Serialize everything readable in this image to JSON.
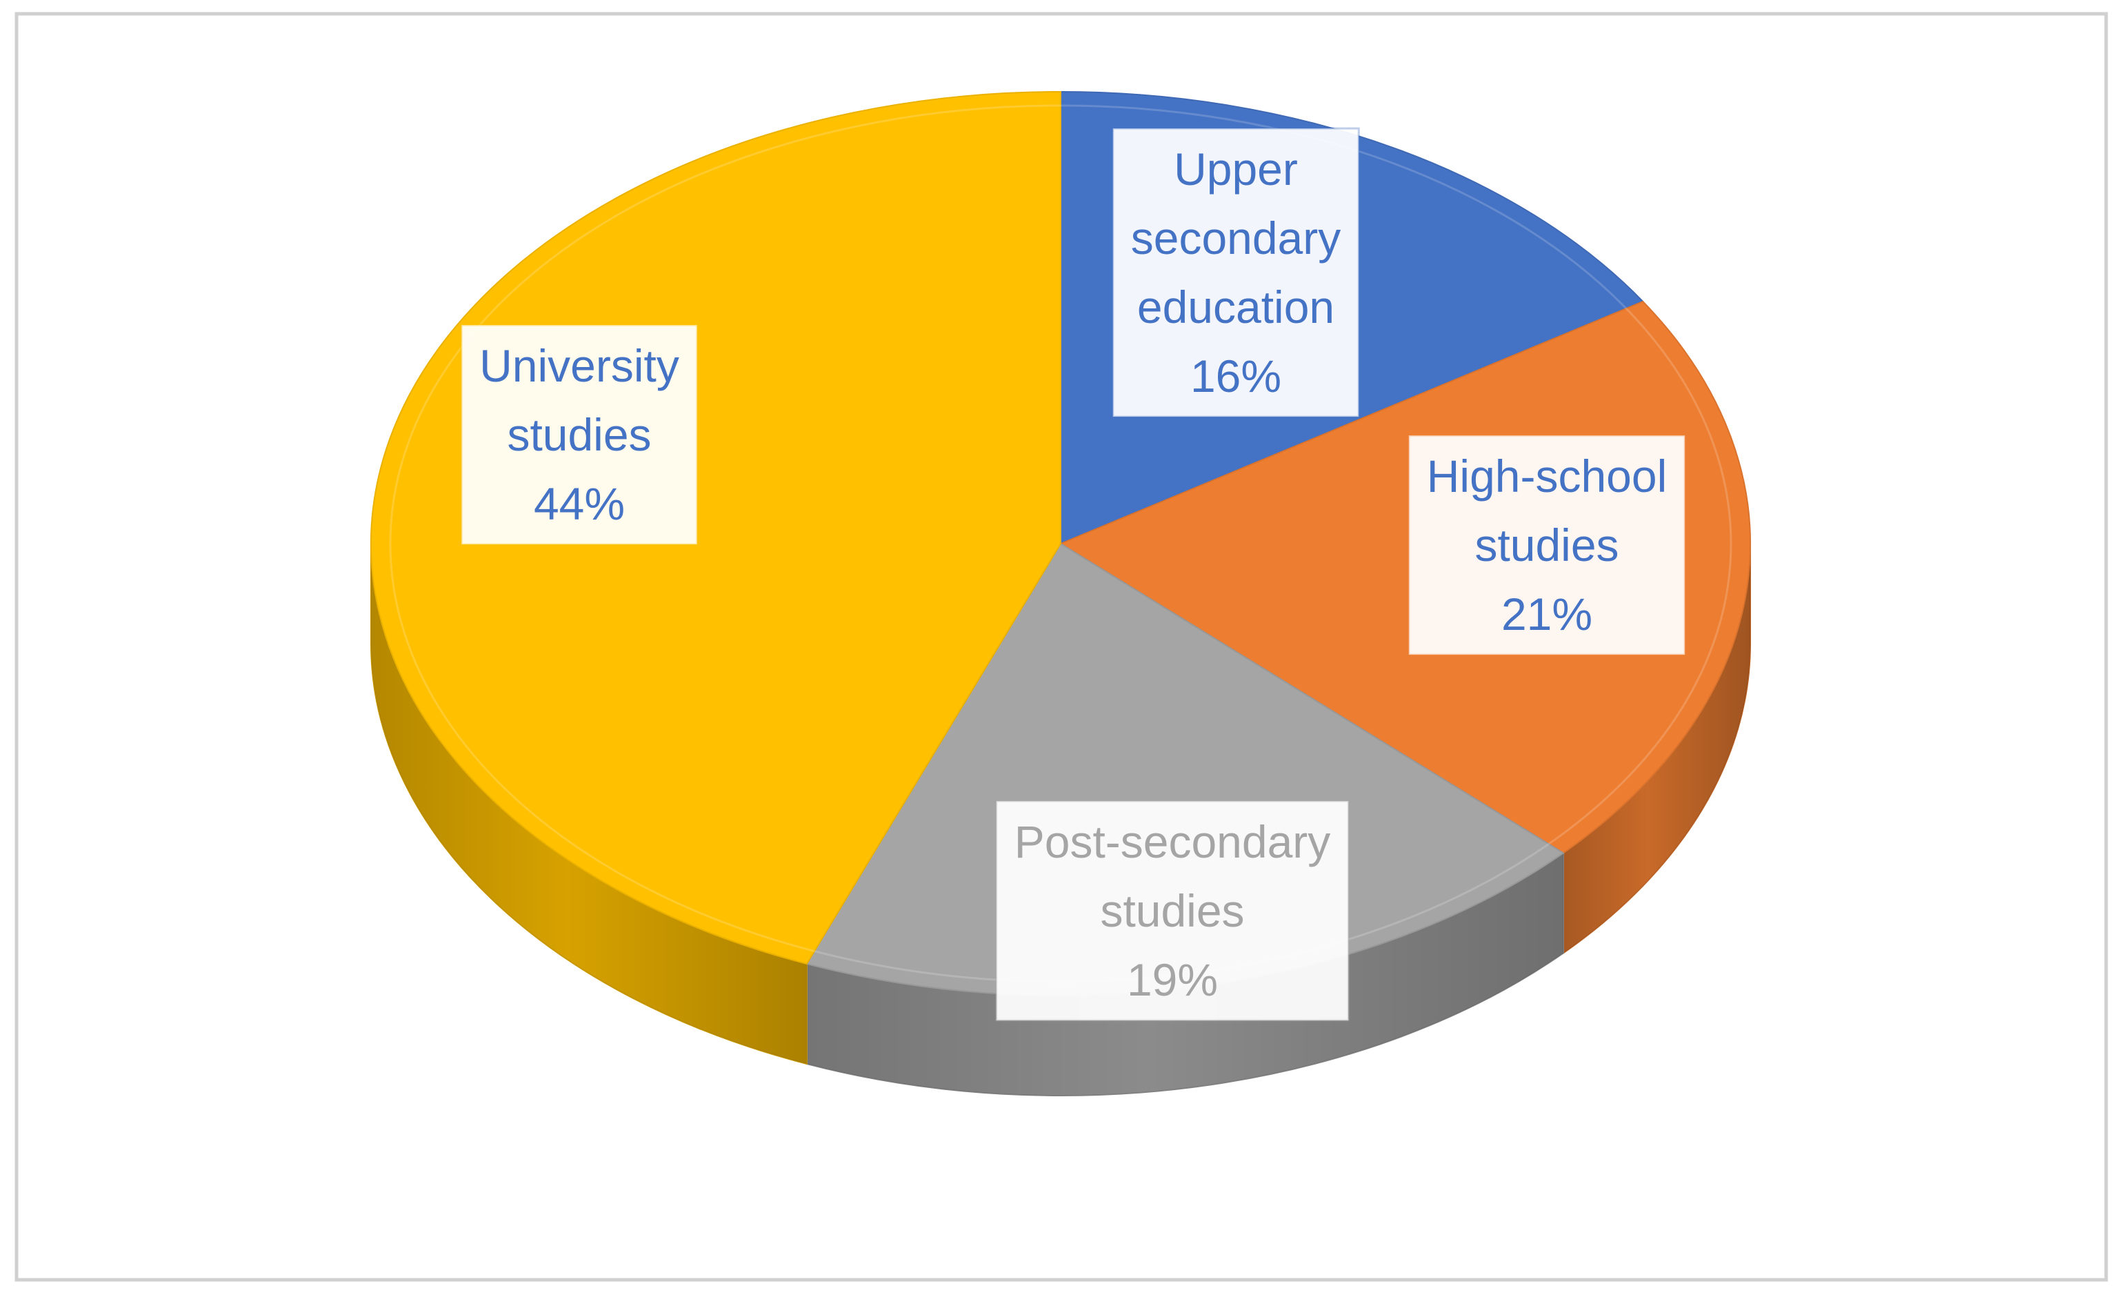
{
  "chart_data": {
    "type": "pie",
    "style": "3d",
    "slices": [
      {
        "label": "Upper secondary education",
        "value": 16,
        "value_label": "16%",
        "color": "#4472C4",
        "label_color": "#4472C4",
        "label_lines": [
          "Upper",
          "secondary",
          "education",
          "16%"
        ]
      },
      {
        "label": "High-school studies",
        "value": 21,
        "value_label": "21%",
        "color": "#ED7D31",
        "label_color": "#4472C4",
        "label_lines": [
          "High-school",
          "studies",
          "21%"
        ]
      },
      {
        "label": "Post-secondary studies",
        "value": 19,
        "value_label": "19%",
        "color": "#A5A5A5",
        "label_color": "#A5A5A5",
        "label_lines": [
          "Post-secondary",
          "studies",
          "19%"
        ]
      },
      {
        "label": "University studies",
        "value": 44,
        "value_label": "44%",
        "color": "#FFC000",
        "label_color": "#4472C4",
        "label_lines": [
          "University",
          "studies",
          "44%"
        ]
      }
    ],
    "legend": "none"
  }
}
